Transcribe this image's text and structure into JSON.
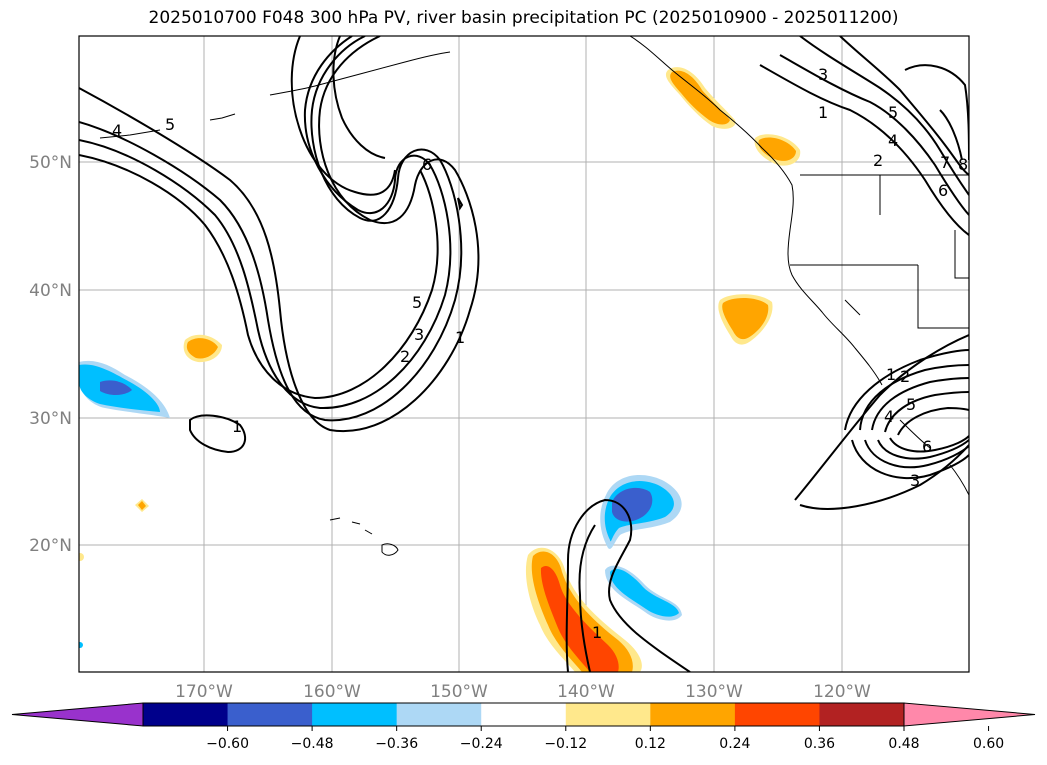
{
  "title": "2025010700 F048 300 hPa PV, river basin precipitation PC (2025010900 - 2025011200)",
  "map": {
    "lat_labels": [
      "50°N",
      "40°N",
      "30°N",
      "20°N"
    ],
    "lon_labels": [
      "170°W",
      "160°W",
      "150°W",
      "140°W",
      "130°W",
      "120°W"
    ],
    "contour_labels": [
      "4",
      "5",
      "6",
      "5",
      "3",
      "2",
      "1",
      "1",
      "3",
      "1",
      "5",
      "4",
      "2",
      "7",
      "6",
      "8",
      "1",
      "2",
      "5",
      "4",
      "6",
      "3",
      "1"
    ]
  },
  "colorbar": {
    "colors": [
      "#9932cc",
      "#00008b",
      "#3a5fcd",
      "#00bfff",
      "#add8f5",
      "#ffffff",
      "#ffe88c",
      "#ffa500",
      "#ff4500",
      "#b22222",
      "#ff88aa"
    ],
    "tick_labels": [
      "−0.60",
      "−0.48",
      "−0.36",
      "−0.24",
      "−0.12",
      "0.12",
      "0.24",
      "0.36",
      "0.48",
      "0.60"
    ]
  }
}
